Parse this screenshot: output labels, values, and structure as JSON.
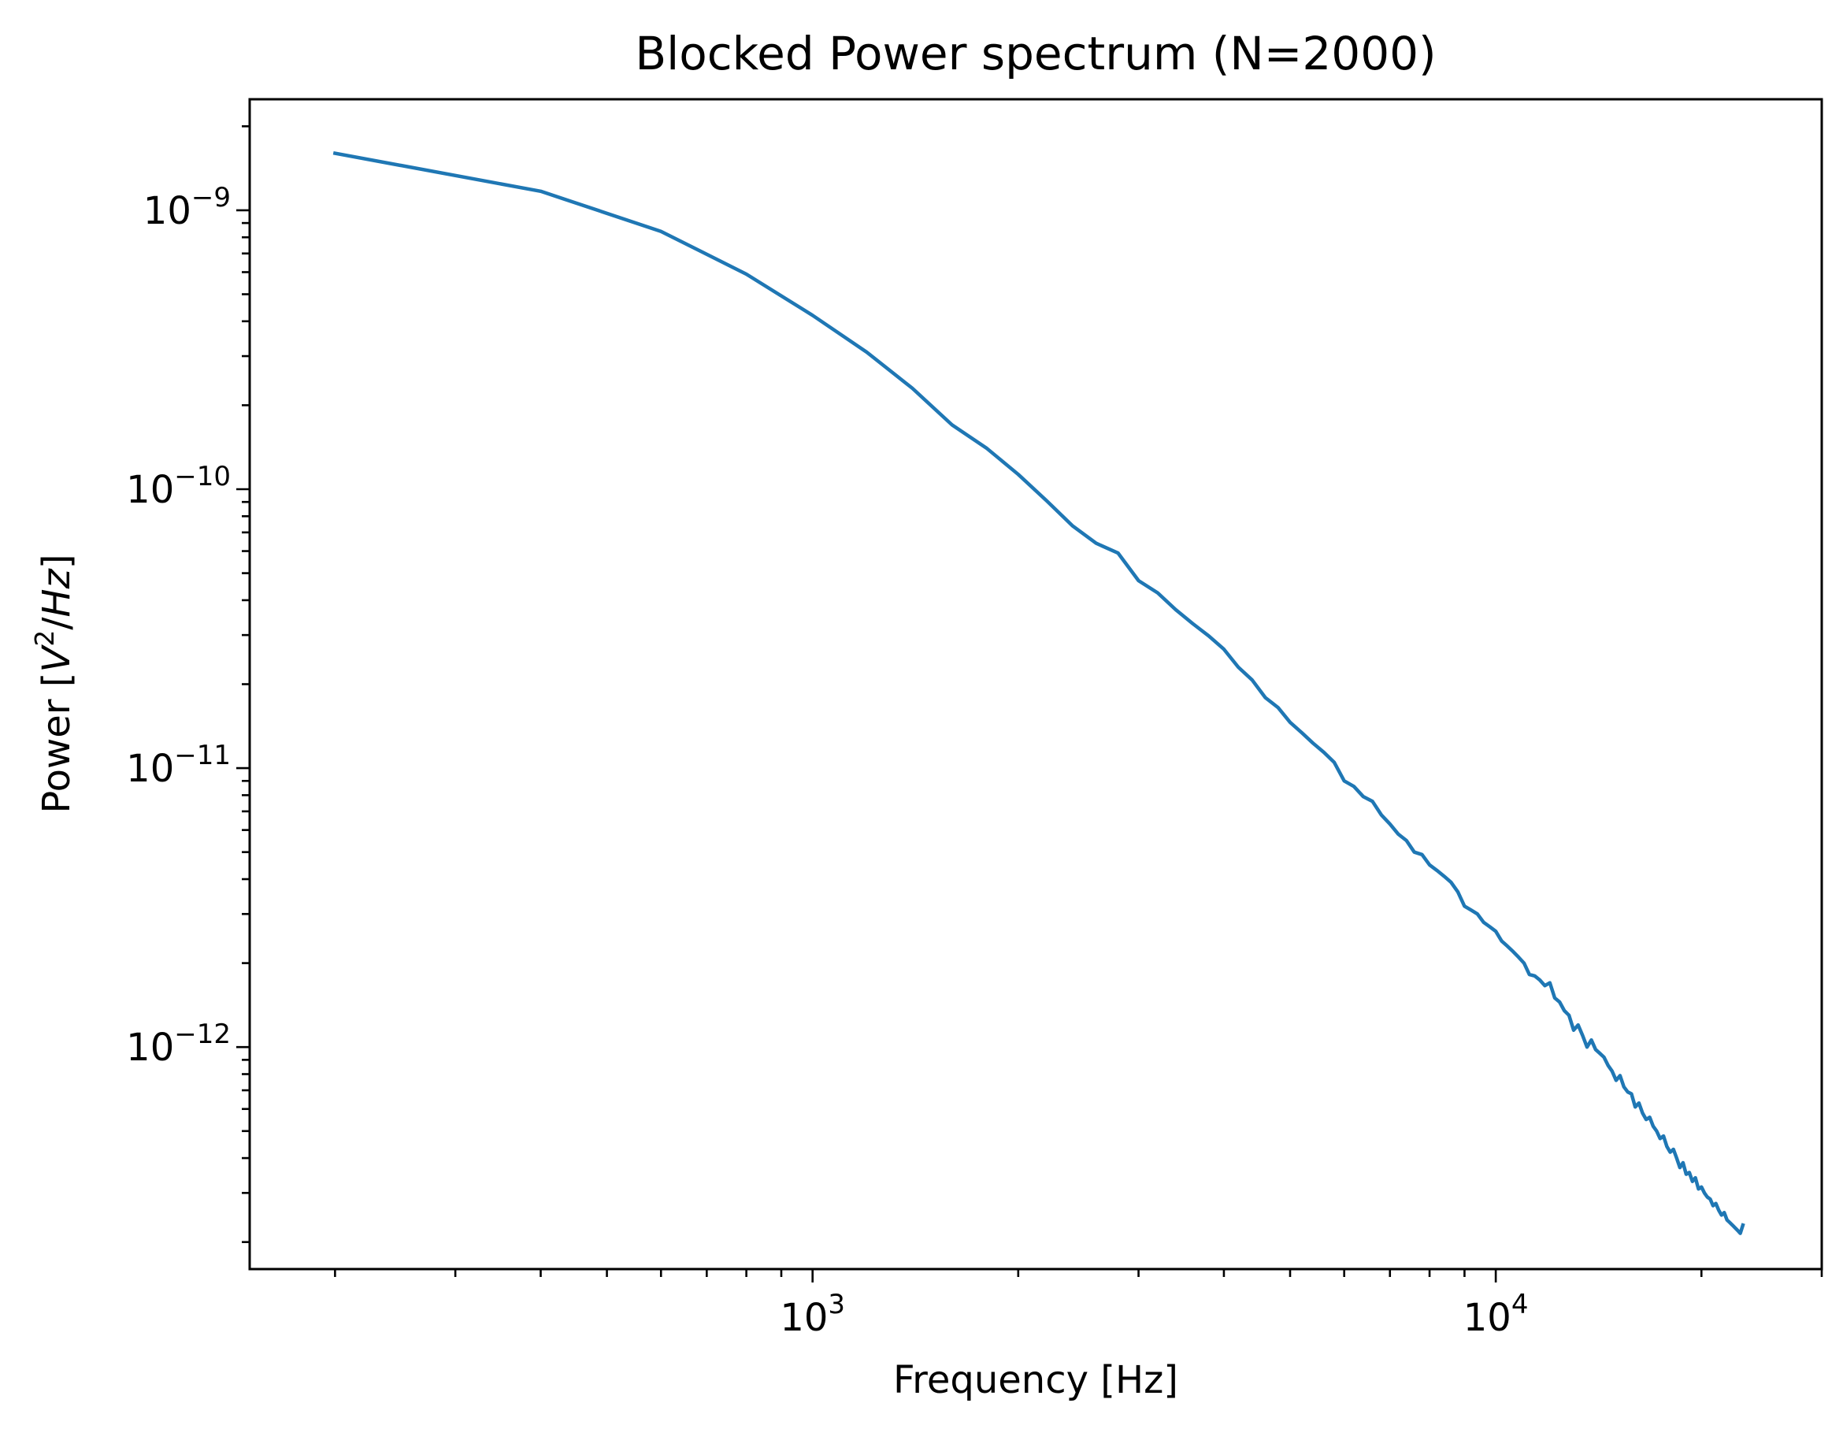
{
  "chart_data": {
    "type": "line",
    "title": "Blocked Power spectrum (N=2000)",
    "xlabel": "Frequency [Hz]",
    "ylabel_prefix": "Power [",
    "ylabel_var": "V",
    "ylabel_sup": "2",
    "ylabel_sep": "/",
    "ylabel_unit": "Hz",
    "ylabel_suffix": "]",
    "xscale": "log",
    "yscale": "log",
    "xlim": [
      150,
      30000
    ],
    "ylim": [
      1.6e-13,
      2.5e-09
    ],
    "grid": false,
    "x_ticks": [
      {
        "value": 1000,
        "base": "10",
        "exp": "3"
      },
      {
        "value": 10000,
        "base": "10",
        "exp": "4"
      }
    ],
    "y_ticks": [
      {
        "value": 1e-12,
        "base": "10",
        "exp": "−12"
      },
      {
        "value": 1e-11,
        "base": "10",
        "exp": "−11"
      },
      {
        "value": 1e-10,
        "base": "10",
        "exp": "−10"
      },
      {
        "value": 1e-09,
        "base": "10",
        "exp": "−9"
      }
    ],
    "series": [
      {
        "color": "#1f77b4",
        "x": [
          200,
          400,
          600,
          800,
          1000,
          1200,
          1400,
          1600,
          1800,
          2000,
          2200,
          2400,
          2600,
          2800,
          3000,
          3200,
          3400,
          3600,
          3800,
          4000,
          4200,
          4400,
          4600,
          4800,
          5000,
          5200,
          5400,
          5600,
          5800,
          6000,
          6200,
          6400,
          6600,
          6800,
          7000,
          7200,
          7400,
          7600,
          7800,
          8000,
          8200,
          8400,
          8600,
          8800,
          9000,
          9200,
          9400,
          9600,
          9800,
          10000,
          10200,
          10400,
          10600,
          10800,
          11000,
          11200,
          11400,
          11600,
          11800,
          12000,
          12200,
          12400,
          12600,
          12800,
          13000,
          13200,
          13400,
          13600,
          13800,
          14000,
          14200,
          14400,
          14600,
          14800,
          15000,
          15200,
          15400,
          15600,
          15800,
          16000,
          16200,
          16400,
          16600,
          16800,
          17000,
          17200,
          17400,
          17600,
          17800,
          18000,
          18200,
          18400,
          18600,
          18800,
          19000,
          19200,
          19400,
          19600,
          19800,
          20000,
          20200,
          20400,
          20600,
          20800,
          21000,
          21200,
          21400,
          21600,
          21800,
          22000,
          22200,
          22400,
          22600,
          22800,
          23000
        ],
        "y": [
          1.6e-09,
          1.17e-09,
          8.4e-10,
          5.9e-10,
          4.2e-10,
          3.1e-10,
          2.3e-10,
          1.7e-10,
          1.4e-10,
          1.13e-10,
          9.1e-11,
          7.4e-11,
          6.4e-11,
          5.9e-11,
          4.7e-11,
          4.25e-11,
          3.7e-11,
          3.3e-11,
          2.98e-11,
          2.67e-11,
          2.3e-11,
          2.07e-11,
          1.79e-11,
          1.65e-11,
          1.46e-11,
          1.34e-11,
          1.23e-11,
          1.14e-11,
          1.05e-11,
          9e-12,
          8.6e-12,
          7.9e-12,
          7.6e-12,
          6.8e-12,
          6.3e-12,
          5.8e-12,
          5.5e-12,
          5e-12,
          4.9e-12,
          4.5e-12,
          4.3e-12,
          4.1e-12,
          3.9e-12,
          3.6e-12,
          3.2e-12,
          3.1e-12,
          3e-12,
          2.8e-12,
          2.7e-12,
          2.6e-12,
          2.4e-12,
          2.3e-12,
          2.2e-12,
          2.1e-12,
          2e-12,
          1.82e-12,
          1.8e-12,
          1.74e-12,
          1.66e-12,
          1.7e-12,
          1.5e-12,
          1.45e-12,
          1.35e-12,
          1.3e-12,
          1.15e-12,
          1.2e-12,
          1.1e-12,
          1e-12,
          1.06e-12,
          9.8e-13,
          9.5e-13,
          9.2e-13,
          8.6e-13,
          8.2e-13,
          7.6e-13,
          7.9e-13,
          7.2e-13,
          6.9e-13,
          6.8e-13,
          6.1e-13,
          6.3e-13,
          5.8e-13,
          5.5e-13,
          5.6e-13,
          5.2e-13,
          5e-13,
          4.7e-13,
          4.8e-13,
          4.4e-13,
          4.2e-13,
          4.3e-13,
          4e-13,
          3.7e-13,
          3.85e-13,
          3.5e-13,
          3.55e-13,
          3.3e-13,
          3.4e-13,
          3.1e-13,
          3.15e-13,
          3e-13,
          2.9e-13,
          2.85e-13,
          2.7e-13,
          2.75e-13,
          2.6e-13,
          2.5e-13,
          2.55e-13,
          2.4e-13,
          2.35e-13,
          2.3e-13,
          2.25e-13,
          2.2e-13,
          2.15e-13,
          2.3e-13
        ]
      }
    ]
  }
}
